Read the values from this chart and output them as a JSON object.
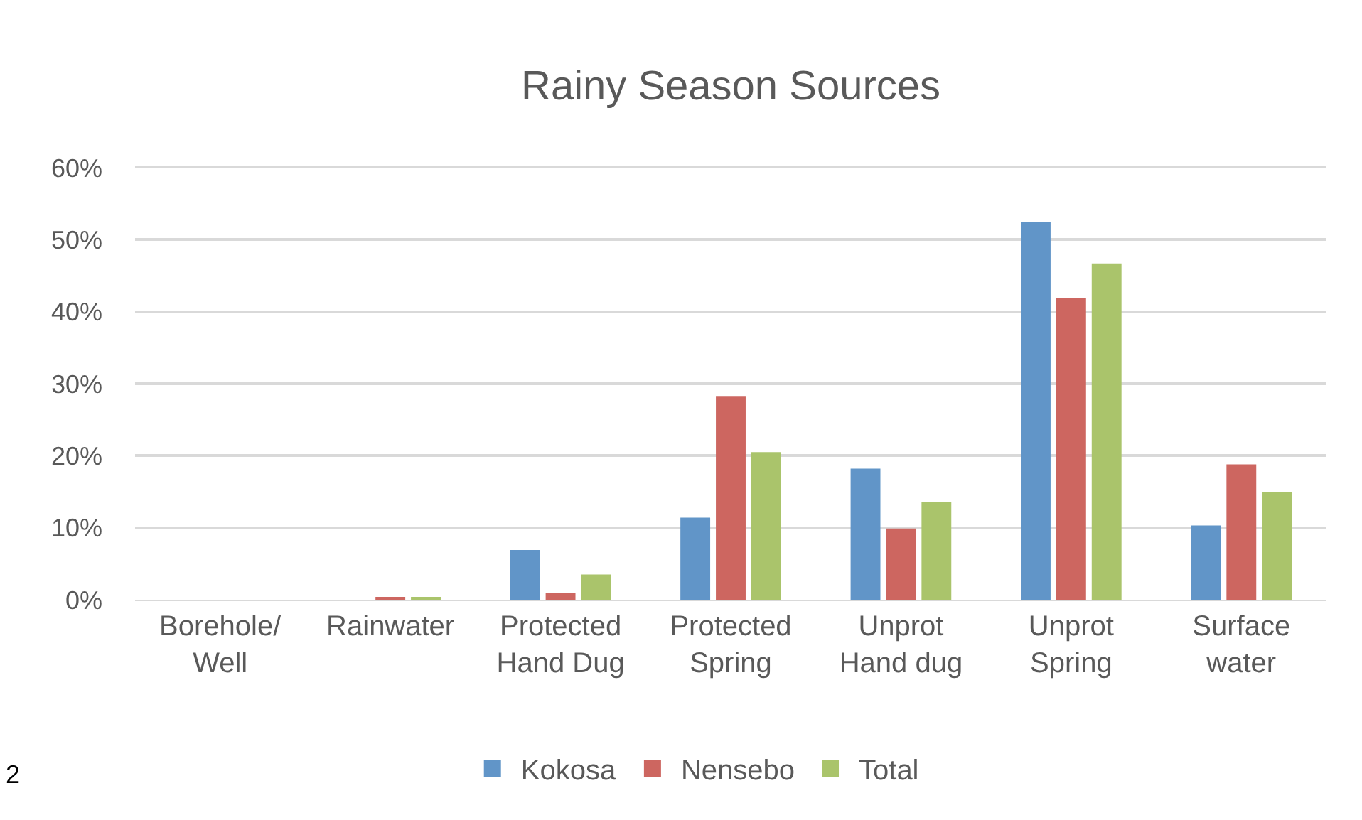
{
  "chart_data": {
    "type": "bar",
    "title": "Rainy Season Sources",
    "categories": [
      "Borehole/ Well",
      "Rainwater",
      "Protected Hand Dug",
      "Protected Spring",
      "Unprot Hand dug",
      "Unprot Spring",
      "Surface water"
    ],
    "series": [
      {
        "name": "Kokosa",
        "color": "#6195c8",
        "values": [
          0,
          0,
          6.9,
          11.4,
          18.2,
          52.5,
          10.3
        ]
      },
      {
        "name": "Nensebo",
        "color": "#cd6660",
        "values": [
          0,
          0.4,
          0.9,
          28.2,
          9.9,
          41.9,
          18.8
        ]
      },
      {
        "name": "Total",
        "color": "#aac46b",
        "values": [
          0,
          0.2,
          3.5,
          20.5,
          13.6,
          46.7,
          15.0
        ]
      }
    ],
    "ylim": [
      0,
      60
    ],
    "yticks": [
      {
        "value": 0,
        "label": "0%"
      },
      {
        "value": 10,
        "label": "10%"
      },
      {
        "value": 20,
        "label": "20%"
      },
      {
        "value": 30,
        "label": "30%"
      },
      {
        "value": 40,
        "label": "40%"
      },
      {
        "value": 50,
        "label": "50%"
      },
      {
        "value": 60,
        "label": "60%"
      }
    ],
    "grid": "y",
    "legend": "bottom",
    "annotations": [
      "2"
    ]
  }
}
